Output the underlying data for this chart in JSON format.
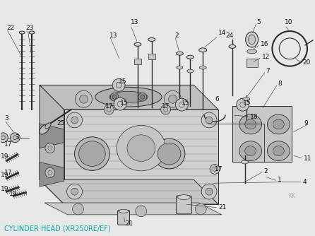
{
  "title": "CYLINDER HEAD (XR250RE/EF)",
  "title_color": "#00aaaa",
  "bg_color": "#e8e8e8",
  "fig_width": 4.46,
  "fig_height": 3.34,
  "dpi": 100,
  "watermark": "KK",
  "watermark_color": "#aaaaaa"
}
